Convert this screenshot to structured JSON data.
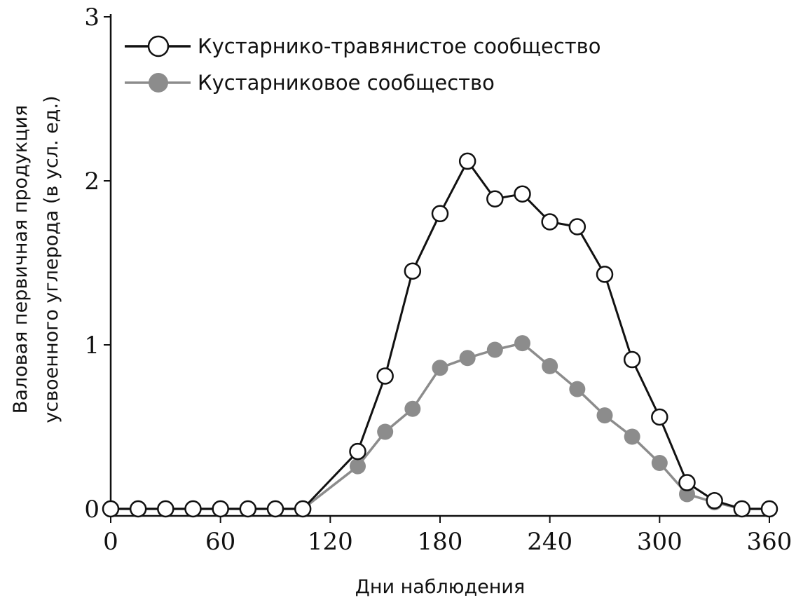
{
  "chart_data": {
    "type": "line",
    "title": "",
    "xlabel": "Дни наблюдения",
    "ylabel_line1": "Валовая первичная продукция",
    "ylabel_line2": "усвоенного углерода (в усл. ед.)",
    "xlim": [
      0,
      360
    ],
    "ylim": [
      0,
      3
    ],
    "x_ticks": [
      0,
      60,
      120,
      180,
      240,
      300,
      360
    ],
    "y_ticks": [
      0,
      1,
      2,
      3
    ],
    "grid": false,
    "legend_position": "top-left",
    "series": [
      {
        "name": "Кустарнико-травянистое сообщество",
        "marker": "open-circle",
        "line_color": "#111111",
        "marker_fill": "#ffffff",
        "marker_stroke": "#111111",
        "x": [
          0,
          15,
          30,
          45,
          60,
          75,
          90,
          105,
          135,
          150,
          165,
          180,
          195,
          210,
          225,
          240,
          255,
          270,
          285,
          300,
          315,
          330,
          345,
          360
        ],
        "y": [
          0,
          0,
          0,
          0,
          0,
          0,
          0,
          0,
          0.35,
          0.81,
          1.45,
          1.8,
          2.12,
          1.89,
          1.92,
          1.75,
          1.72,
          1.43,
          0.91,
          0.56,
          0.16,
          0.05,
          0,
          0
        ]
      },
      {
        "name": "Кустарниковое сообщество",
        "marker": "filled-circle",
        "line_color": "#8c8c8c",
        "marker_fill": "#8c8c8c",
        "marker_stroke": "#8c8c8c",
        "x": [
          0,
          15,
          30,
          45,
          60,
          75,
          90,
          105,
          135,
          150,
          165,
          180,
          195,
          210,
          225,
          240,
          255,
          270,
          285,
          300,
          315,
          330,
          345,
          360
        ],
        "y": [
          0,
          0,
          0,
          0,
          0,
          0,
          0,
          0,
          0.26,
          0.47,
          0.61,
          0.86,
          0.92,
          0.97,
          1.01,
          0.87,
          0.73,
          0.57,
          0.44,
          0.28,
          0.09,
          0.04,
          0,
          0
        ]
      }
    ]
  }
}
